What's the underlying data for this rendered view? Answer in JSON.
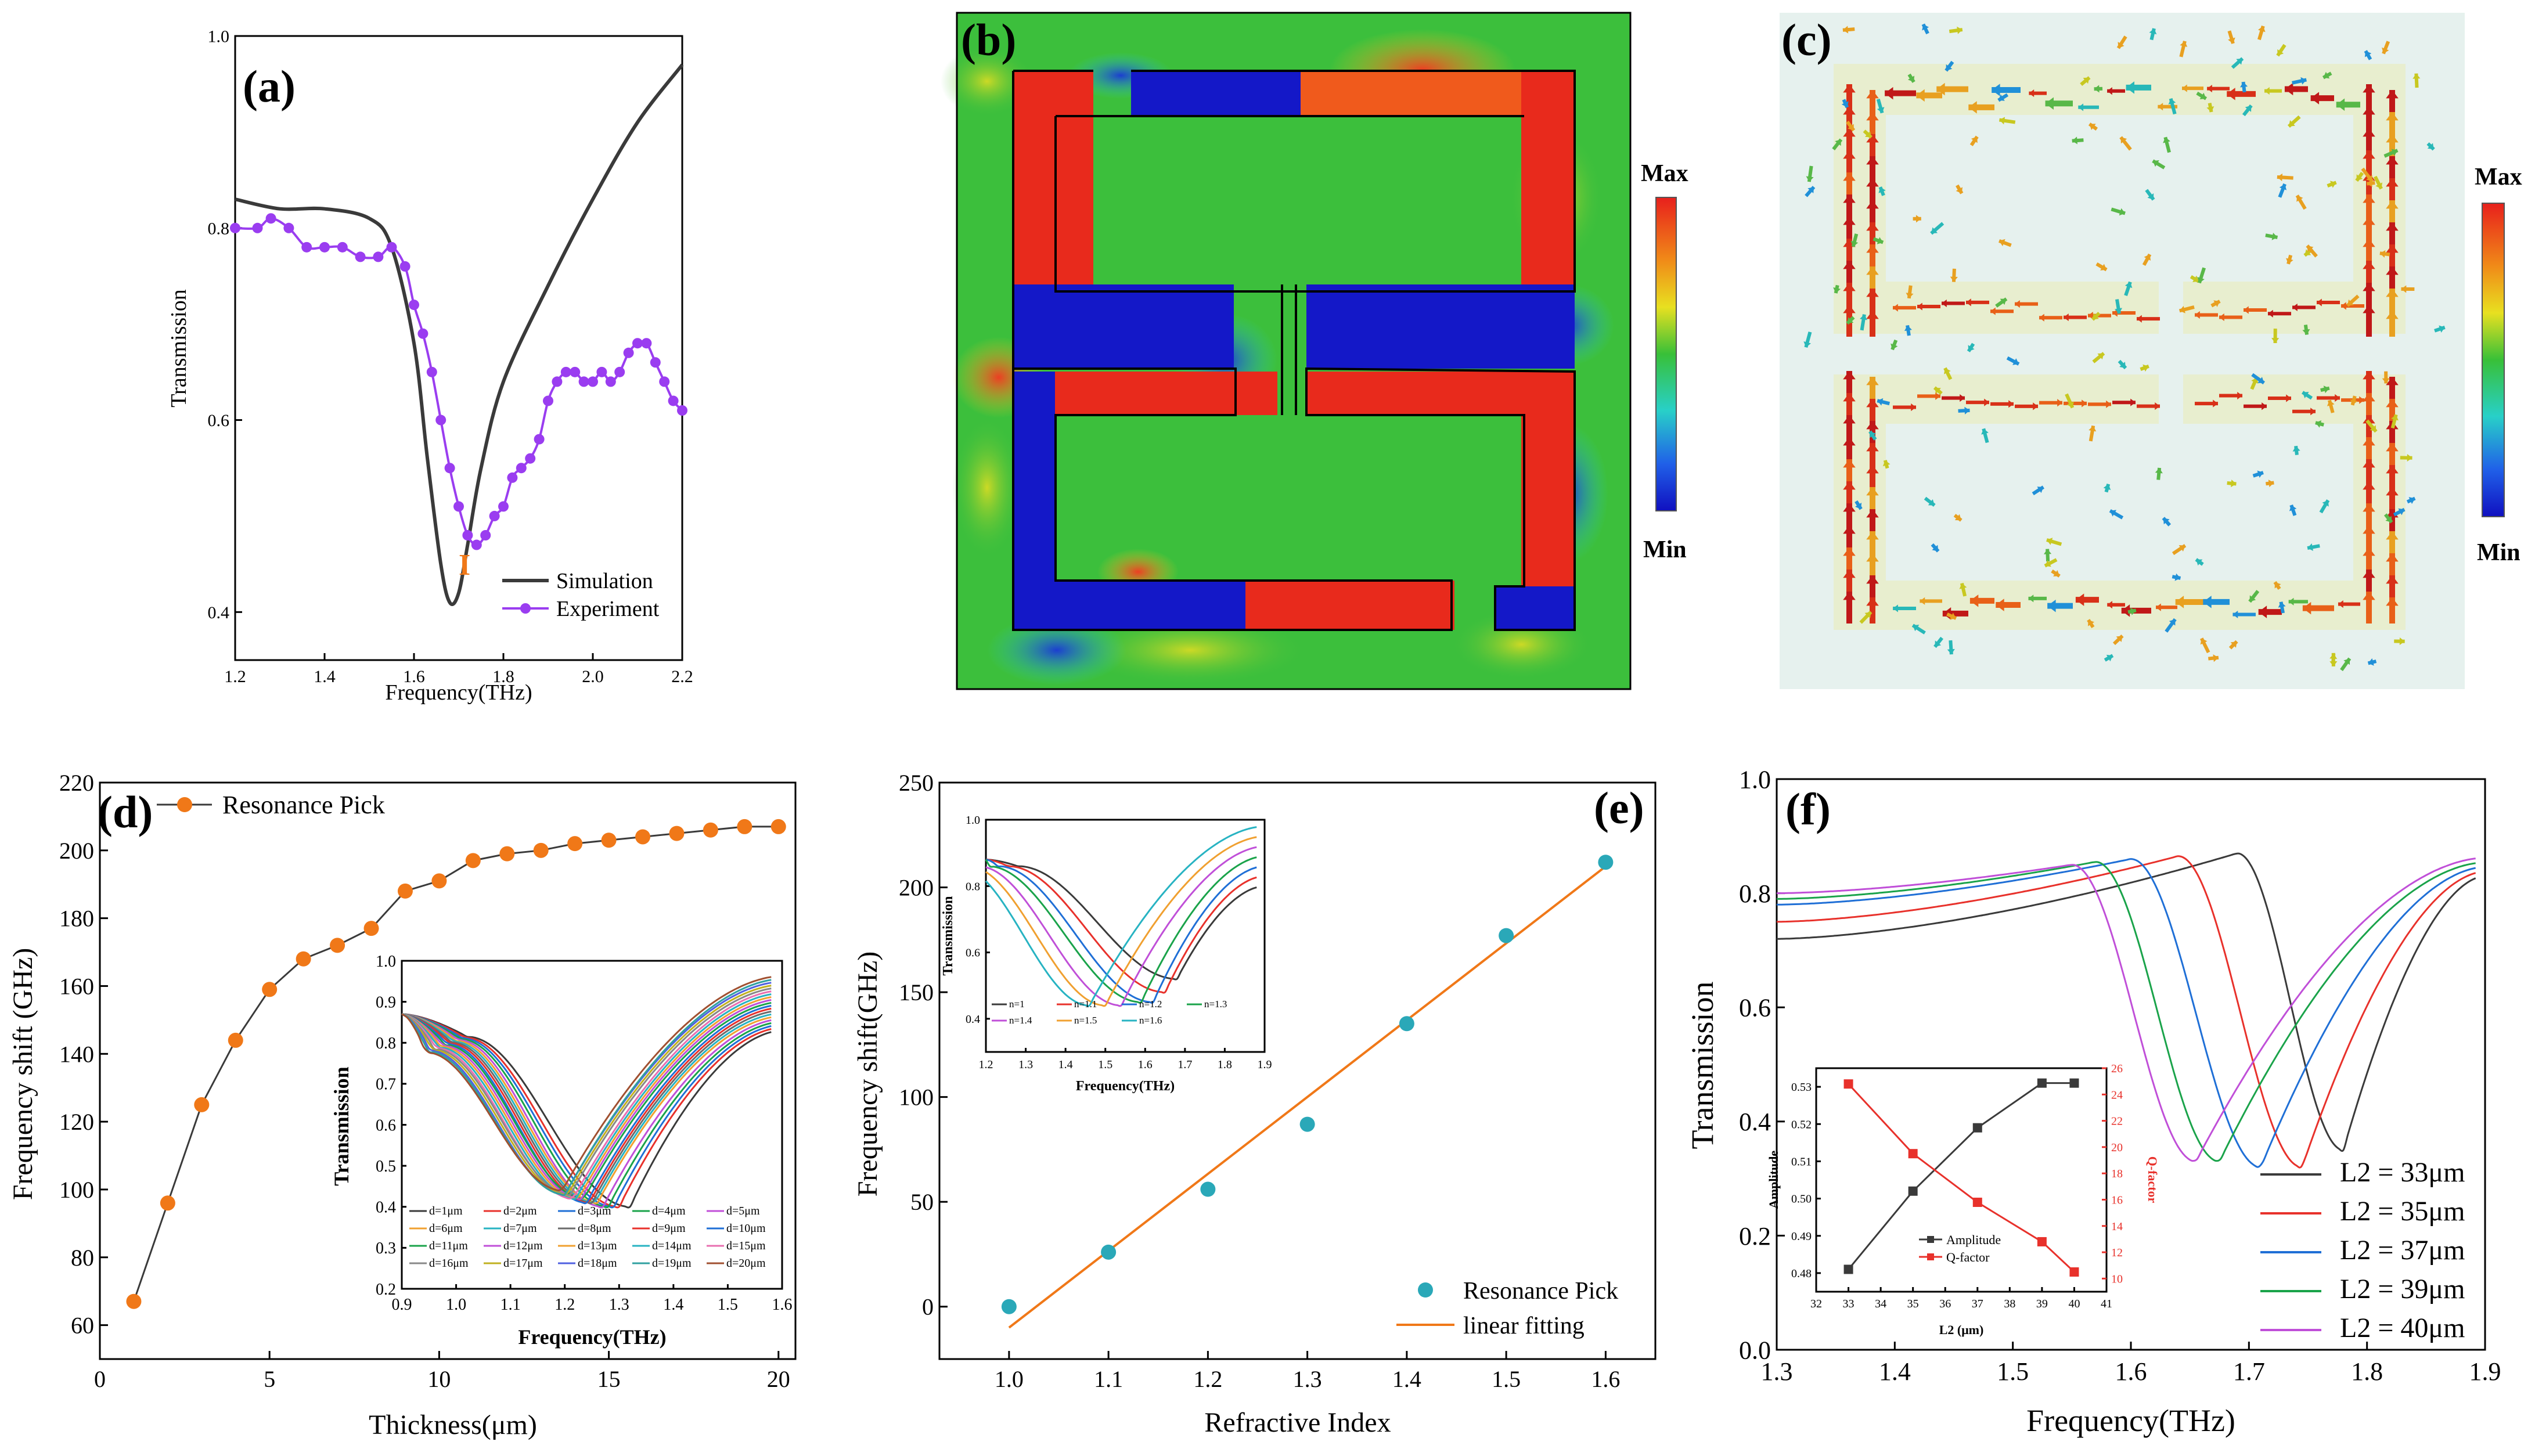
{
  "chart_data": [
    {
      "id": "a",
      "panel_label": "(a)",
      "type": "line",
      "xlabel": "Frequency(THz)",
      "ylabel": "Transmission",
      "xlim": [
        1.2,
        2.2
      ],
      "ylim": [
        0.35,
        1.0
      ],
      "xticks": [
        "1.2",
        "1.4",
        "1.6",
        "1.8",
        "2.0",
        "2.2"
      ],
      "yticks": [
        "0.4",
        "0.6",
        "0.8",
        "1.0"
      ],
      "annotation": "I",
      "legend": [
        "Simulation",
        "Experiment"
      ],
      "colors": {
        "Simulation": "#3a3a3a",
        "Experiment": "#9a3df0",
        "annotation": "#f07818"
      },
      "series": [
        {
          "name": "Simulation",
          "x": [
            1.2,
            1.3,
            1.4,
            1.5,
            1.55,
            1.6,
            1.63,
            1.66,
            1.68,
            1.7,
            1.72,
            1.75,
            1.8,
            1.9,
            2.0,
            2.1,
            2.2
          ],
          "y": [
            0.83,
            0.82,
            0.82,
            0.81,
            0.78,
            0.68,
            0.56,
            0.45,
            0.41,
            0.42,
            0.47,
            0.55,
            0.64,
            0.74,
            0.83,
            0.91,
            0.97
          ]
        },
        {
          "name": "Experiment",
          "x": [
            1.2,
            1.25,
            1.28,
            1.32,
            1.36,
            1.4,
            1.44,
            1.48,
            1.52,
            1.55,
            1.58,
            1.6,
            1.62,
            1.64,
            1.66,
            1.68,
            1.7,
            1.72,
            1.74,
            1.76,
            1.78,
            1.8,
            1.82,
            1.84,
            1.86,
            1.88,
            1.9,
            1.92,
            1.94,
            1.96,
            1.98,
            2.0,
            2.02,
            2.04,
            2.06,
            2.08,
            2.1,
            2.12,
            2.14,
            2.16,
            2.18,
            2.2
          ],
          "y": [
            0.8,
            0.8,
            0.81,
            0.8,
            0.78,
            0.78,
            0.78,
            0.77,
            0.77,
            0.78,
            0.76,
            0.72,
            0.69,
            0.65,
            0.6,
            0.55,
            0.51,
            0.48,
            0.47,
            0.48,
            0.5,
            0.51,
            0.54,
            0.55,
            0.56,
            0.58,
            0.62,
            0.64,
            0.65,
            0.65,
            0.64,
            0.64,
            0.65,
            0.64,
            0.65,
            0.67,
            0.68,
            0.68,
            0.66,
            0.64,
            0.62,
            0.61
          ]
        }
      ]
    },
    {
      "id": "b",
      "panel_label": "(b)",
      "type": "field-map",
      "colorbar": [
        "Max",
        "Min"
      ]
    },
    {
      "id": "c",
      "panel_label": "(c)",
      "type": "vector-field",
      "colorbar": [
        "Max",
        "Min"
      ]
    },
    {
      "id": "d",
      "panel_label": "(d)",
      "type": "scatter",
      "xlabel": "Thickness(μm)",
      "ylabel": "Frequency shift (GHz)",
      "xlim": [
        0,
        20.5
      ],
      "ylim": [
        50,
        220
      ],
      "xticks": [
        "0",
        "5",
        "10",
        "15",
        "20"
      ],
      "yticks": [
        "60",
        "80",
        "100",
        "120",
        "140",
        "160",
        "180",
        "200",
        "220"
      ],
      "legend": [
        "Resonance Pick"
      ],
      "colors": {
        "marker": "#f07818"
      },
      "series": [
        {
          "name": "Resonance Pick",
          "x": [
            1,
            2,
            3,
            4,
            5,
            6,
            7,
            8,
            9,
            10,
            11,
            12,
            13,
            14,
            15,
            16,
            17,
            18,
            19,
            20
          ],
          "y": [
            67,
            96,
            125,
            144,
            159,
            168,
            172,
            177,
            188,
            191,
            197,
            199,
            200,
            202,
            203,
            204,
            205,
            206,
            207,
            207
          ]
        }
      ],
      "inset": {
        "type": "line",
        "xlabel": "Frequency(THz)",
        "ylabel": "Transmission",
        "xlim": [
          0.9,
          1.6
        ],
        "ylim": [
          0.2,
          1.0
        ],
        "xticks": [
          "0.9",
          "1.0",
          "1.1",
          "1.2",
          "1.3",
          "1.4",
          "1.5",
          "1.6"
        ],
        "yticks": [
          "0.2",
          "0.3",
          "0.4",
          "0.5",
          "0.6",
          "0.7",
          "0.8",
          "0.9",
          "1.0"
        ],
        "legend": [
          "d=1μm",
          "d=2μm",
          "d=3μm",
          "d=4μm",
          "d=5μm",
          "d=6μm",
          "d=7μm",
          "d=8μm",
          "d=9μm",
          "d=10μm",
          "d=11μm",
          "d=12μm",
          "d=13μm",
          "d=14μm",
          "d=15μm",
          "d=16μm",
          "d=17μm",
          "d=18μm",
          "d=19μm",
          "d=20μm"
        ],
        "colors": [
          "#3a3a3a",
          "#e8312b",
          "#1f6fd6",
          "#1aa34a",
          "#c04fd8",
          "#f0a030",
          "#27b3c2",
          "#6b6b6b",
          "#e8312b",
          "#1f6fd6",
          "#1aa34a",
          "#c04fd8",
          "#f0a030",
          "#27b3c2",
          "#e86fb0",
          "#888888",
          "#c0b020",
          "#5060e0",
          "#30a0a0",
          "#a05030"
        ],
        "dip_x": [
          1.32,
          1.3,
          1.29,
          1.28,
          1.27,
          1.26,
          1.255,
          1.25,
          1.245,
          1.24,
          1.235,
          1.23,
          1.225,
          1.22,
          1.215,
          1.21,
          1.205,
          1.2,
          1.2,
          1.195
        ],
        "dip_y": [
          0.4,
          0.4,
          0.4,
          0.4,
          0.4,
          0.41,
          0.41,
          0.41,
          0.41,
          0.41,
          0.42,
          0.42,
          0.42,
          0.42,
          0.42,
          0.43,
          0.43,
          0.43,
          0.43,
          0.44
        ]
      }
    },
    {
      "id": "e",
      "panel_label": "(e)",
      "type": "scatter",
      "xlabel": "Refractive Index",
      "ylabel": "Frequency shift(GHz)",
      "xlim": [
        0.93,
        1.65
      ],
      "ylim": [
        -25,
        250
      ],
      "xticks": [
        "1.0",
        "1.1",
        "1.2",
        "1.3",
        "1.4",
        "1.5",
        "1.6"
      ],
      "yticks": [
        "0",
        "50",
        "100",
        "150",
        "200",
        "250"
      ],
      "legend": [
        "Resonance Pick",
        "linear fitting"
      ],
      "colors": {
        "marker": "#2aa8b8",
        "fit": "#f07818"
      },
      "series": [
        {
          "name": "Resonance Pick",
          "x": [
            1.0,
            1.1,
            1.2,
            1.3,
            1.4,
            1.5,
            1.6
          ],
          "y": [
            0,
            26,
            56,
            87,
            135,
            177,
            212
          ]
        },
        {
          "name": "linear fitting",
          "x": [
            1.0,
            1.6
          ],
          "y": [
            -10,
            210
          ]
        }
      ],
      "inset": {
        "type": "line",
        "xlabel": "Frequency(THz)",
        "ylabel": "Transmission",
        "xlim": [
          1.2,
          1.9
        ],
        "ylim": [
          0.3,
          1.0
        ],
        "xticks": [
          "1.2",
          "1.3",
          "1.4",
          "1.5",
          "1.6",
          "1.7",
          "1.8",
          "1.9"
        ],
        "yticks": [
          "0.4",
          "0.6",
          "0.8",
          "1.0"
        ],
        "legend": [
          "n=1",
          "n=1.1",
          "n=1.2",
          "n=1.3",
          "n=1.4",
          "n=1.5",
          "n=1.6"
        ],
        "colors": [
          "#3a3a3a",
          "#e8312b",
          "#1f6fd6",
          "#1aa34a",
          "#c04fd8",
          "#f0a030",
          "#27b3c2"
        ],
        "dip_x": [
          1.68,
          1.65,
          1.62,
          1.59,
          1.54,
          1.5,
          1.46
        ],
        "dip_y": [
          0.52,
          0.48,
          0.45,
          0.45,
          0.44,
          0.44,
          0.44
        ]
      }
    },
    {
      "id": "f",
      "panel_label": "(f)",
      "type": "line",
      "xlabel": "Frequency(THz)",
      "ylabel": "Transmission",
      "xlim": [
        1.3,
        1.9
      ],
      "ylim": [
        0.0,
        1.0
      ],
      "xticks": [
        "1.3",
        "1.4",
        "1.5",
        "1.6",
        "1.7",
        "1.8",
        "1.9"
      ],
      "yticks": [
        "0.0",
        "0.2",
        "0.4",
        "0.6",
        "0.8",
        "1.0"
      ],
      "legend": [
        "L2 = 33μm",
        "L2 = 35μm",
        "L2 = 37μm",
        "L2 = 39μm",
        "L2 = 40μm"
      ],
      "colors": [
        "#3a3a3a",
        "#e8312b",
        "#1f6fd6",
        "#1aa34a",
        "#c04fd8"
      ],
      "series": [
        {
          "name": "L2 = 33μm",
          "peak_x": 1.69,
          "peak_y": 0.87,
          "dip_x": 1.78,
          "dip_y": 0.35,
          "start_y": 0.72
        },
        {
          "name": "L2 = 35μm",
          "peak_x": 1.64,
          "peak_y": 0.865,
          "dip_x": 1.745,
          "dip_y": 0.32,
          "start_y": 0.75
        },
        {
          "name": "L2 = 37μm",
          "peak_x": 1.6,
          "peak_y": 0.86,
          "dip_x": 1.71,
          "dip_y": 0.32,
          "start_y": 0.78
        },
        {
          "name": "L2 = 39μm",
          "peak_x": 1.57,
          "peak_y": 0.855,
          "dip_x": 1.675,
          "dip_y": 0.33,
          "start_y": 0.79
        },
        {
          "name": "L2 = 40μm",
          "peak_x": 1.55,
          "peak_y": 0.85,
          "dip_x": 1.655,
          "dip_y": 0.33,
          "start_y": 0.8
        }
      ],
      "inset": {
        "type": "line",
        "xlabel": "L2 (μm)",
        "ylabel_left": "Amplitude",
        "ylabel_right": "Q-factor",
        "xlim": [
          32,
          41
        ],
        "ylim_left": [
          0.475,
          0.535
        ],
        "ylim_right": [
          9,
          26
        ],
        "xticks": [
          "32",
          "33",
          "34",
          "35",
          "36",
          "37",
          "38",
          "39",
          "40",
          "41"
        ],
        "yticks_left": [
          "0.48",
          "0.49",
          "0.50",
          "0.51",
          "0.52",
          "0.53"
        ],
        "yticks_right": [
          "10",
          "12",
          "14",
          "16",
          "18",
          "20",
          "22",
          "24",
          "26"
        ],
        "legend": [
          "Amplitude",
          "Q-factor"
        ],
        "colors": {
          "Amplitude": "#3a3a3a",
          "Q-factor": "#e8312b"
        },
        "series": [
          {
            "name": "Amplitude",
            "x": [
              33,
              35,
              37,
              39,
              40
            ],
            "y": [
              0.481,
              0.502,
              0.519,
              0.531,
              0.531
            ]
          },
          {
            "name": "Q-factor",
            "x": [
              33,
              35,
              37,
              39,
              40
            ],
            "y": [
              24.8,
              19.5,
              15.8,
              12.8,
              10.5
            ]
          }
        ]
      }
    }
  ]
}
